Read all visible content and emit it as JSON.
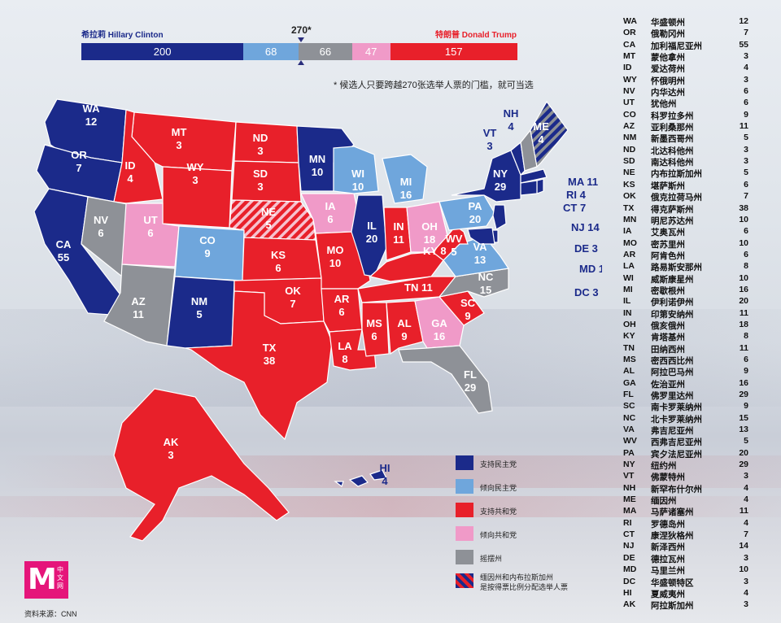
{
  "colors": {
    "dem": "#1b2a8a",
    "lean_dem": "#6fa6dc",
    "tossup": "#8e9197",
    "lean_rep": "#f09ac8",
    "rep": "#e8202a",
    "split_stripe": "#1b2a8a"
  },
  "header": {
    "dem_label": "希拉莉 Hillary Clinton",
    "rep_label": "特朗普 Donald Trump",
    "threshold_label": "270*"
  },
  "score_bar": [
    {
      "key": "dem",
      "value": 200
    },
    {
      "key": "lean_dem",
      "value": 68
    },
    {
      "key": "tossup",
      "value": 66
    },
    {
      "key": "lean_rep",
      "value": 47
    },
    {
      "key": "rep",
      "value": 157
    }
  ],
  "footnote": "* 候选人只要跨越270张选举人票的门槛，就可当选",
  "legend": [
    {
      "key": "dem",
      "label": "支持民主党"
    },
    {
      "key": "lean_dem",
      "label": "倾向民主党"
    },
    {
      "key": "rep",
      "label": "支持共和党"
    },
    {
      "key": "lean_rep",
      "label": "倾向共和党"
    },
    {
      "key": "tossup",
      "label": "摇摆州"
    },
    {
      "key": "split",
      "label": "缅因州和内布拉斯加州\n是按得票比例分配选举人票"
    }
  ],
  "logo": {
    "letter": "M",
    "sub": "中文网"
  },
  "source": "资料来源：CNN",
  "states": [
    {
      "code": "WA",
      "name": "华盛顿州",
      "votes": 12,
      "cat": "dem"
    },
    {
      "code": "OR",
      "name": "俄勒冈州",
      "votes": 7,
      "cat": "dem"
    },
    {
      "code": "CA",
      "name": "加利福尼亚州",
      "votes": 55,
      "cat": "dem"
    },
    {
      "code": "MT",
      "name": "蒙他拿州",
      "votes": 3,
      "cat": "rep"
    },
    {
      "code": "ID",
      "name": "爱达荷州",
      "votes": 4,
      "cat": "rep"
    },
    {
      "code": "WY",
      "name": "怀俄明州",
      "votes": 3,
      "cat": "rep"
    },
    {
      "code": "NV",
      "name": "内华达州",
      "votes": 6,
      "cat": "tossup"
    },
    {
      "code": "UT",
      "name": "犹他州",
      "votes": 6,
      "cat": "lean_rep"
    },
    {
      "code": "CO",
      "name": "科罗拉多州",
      "votes": 9,
      "cat": "lean_dem"
    },
    {
      "code": "AZ",
      "name": "亚利桑那州",
      "votes": 11,
      "cat": "tossup"
    },
    {
      "code": "NM",
      "name": "新墨西哥州",
      "votes": 5,
      "cat": "dem"
    },
    {
      "code": "ND",
      "name": "北达科他州",
      "votes": 3,
      "cat": "rep"
    },
    {
      "code": "SD",
      "name": "南达科他州",
      "votes": 3,
      "cat": "rep"
    },
    {
      "code": "NE",
      "name": "内布拉斯加州",
      "votes": 5,
      "cat": "split"
    },
    {
      "code": "KS",
      "name": "堪萨斯州",
      "votes": 6,
      "cat": "rep"
    },
    {
      "code": "OK",
      "name": "俄克拉荷马州",
      "votes": 7,
      "cat": "rep"
    },
    {
      "code": "TX",
      "name": "得克萨斯州",
      "votes": 38,
      "cat": "rep"
    },
    {
      "code": "MN",
      "name": "明尼苏达州",
      "votes": 10,
      "cat": "dem"
    },
    {
      "code": "IA",
      "name": "艾奥瓦州",
      "votes": 6,
      "cat": "lean_rep"
    },
    {
      "code": "MO",
      "name": "密苏里州",
      "votes": 10,
      "cat": "rep"
    },
    {
      "code": "AR",
      "name": "阿肯色州",
      "votes": 6,
      "cat": "rep"
    },
    {
      "code": "LA",
      "name": "路易斯安那州",
      "votes": 8,
      "cat": "rep"
    },
    {
      "code": "WI",
      "name": "威斯康星州",
      "votes": 10,
      "cat": "lean_dem"
    },
    {
      "code": "MI",
      "name": "密歇根州",
      "votes": 16,
      "cat": "lean_dem"
    },
    {
      "code": "IL",
      "name": "伊利诺伊州",
      "votes": 20,
      "cat": "dem"
    },
    {
      "code": "IN",
      "name": "印第安纳州",
      "votes": 11,
      "cat": "rep"
    },
    {
      "code": "OH",
      "name": "俄亥俄州",
      "votes": 18,
      "cat": "lean_rep"
    },
    {
      "code": "KY",
      "name": "肯塔基州",
      "votes": 8,
      "cat": "rep"
    },
    {
      "code": "TN",
      "name": "田纳西州",
      "votes": 11,
      "cat": "rep"
    },
    {
      "code": "MS",
      "name": "密西西比州",
      "votes": 6,
      "cat": "rep"
    },
    {
      "code": "AL",
      "name": "阿拉巴马州",
      "votes": 9,
      "cat": "rep"
    },
    {
      "code": "GA",
      "name": "佐治亚州",
      "votes": 16,
      "cat": "lean_rep"
    },
    {
      "code": "FL",
      "name": "佛罗里达州",
      "votes": 29,
      "cat": "tossup"
    },
    {
      "code": "SC",
      "name": "南卡罗莱纳州",
      "votes": 9,
      "cat": "rep"
    },
    {
      "code": "NC",
      "name": "北卡罗莱纳州",
      "votes": 15,
      "cat": "tossup"
    },
    {
      "code": "VA",
      "name": "弗吉尼亚州",
      "votes": 13,
      "cat": "lean_dem"
    },
    {
      "code": "WV",
      "name": "西弗吉尼亚州",
      "votes": 5,
      "cat": "rep"
    },
    {
      "code": "PA",
      "name": "宾夕法尼亚州",
      "votes": 20,
      "cat": "lean_dem"
    },
    {
      "code": "NY",
      "name": "纽约州",
      "votes": 29,
      "cat": "dem"
    },
    {
      "code": "VT",
      "name": "佛蒙特州",
      "votes": 3,
      "cat": "dem"
    },
    {
      "code": "NH",
      "name": "新罕布什尔州",
      "votes": 4,
      "cat": "tossup"
    },
    {
      "code": "ME",
      "name": "缅因州",
      "votes": 4,
      "cat": "split"
    },
    {
      "code": "MA",
      "name": "马萨诸塞州",
      "votes": 11,
      "cat": "dem"
    },
    {
      "code": "RI",
      "name": "罗德岛州",
      "votes": 4,
      "cat": "dem"
    },
    {
      "code": "CT",
      "name": "康涅狄格州",
      "votes": 7,
      "cat": "dem"
    },
    {
      "code": "NJ",
      "name": "新泽西州",
      "votes": 14,
      "cat": "dem"
    },
    {
      "code": "DE",
      "name": "德拉瓦州",
      "votes": 3,
      "cat": "dem"
    },
    {
      "code": "MD",
      "name": "马里兰州",
      "votes": 10,
      "cat": "dem"
    },
    {
      "code": "DC",
      "name": "华盛顿特区",
      "votes": 3,
      "cat": "dem"
    },
    {
      "code": "HI",
      "name": "夏威夷州",
      "votes": 4,
      "cat": "dem"
    },
    {
      "code": "AK",
      "name": "阿拉斯加州",
      "votes": 3,
      "cat": "rep"
    }
  ]
}
